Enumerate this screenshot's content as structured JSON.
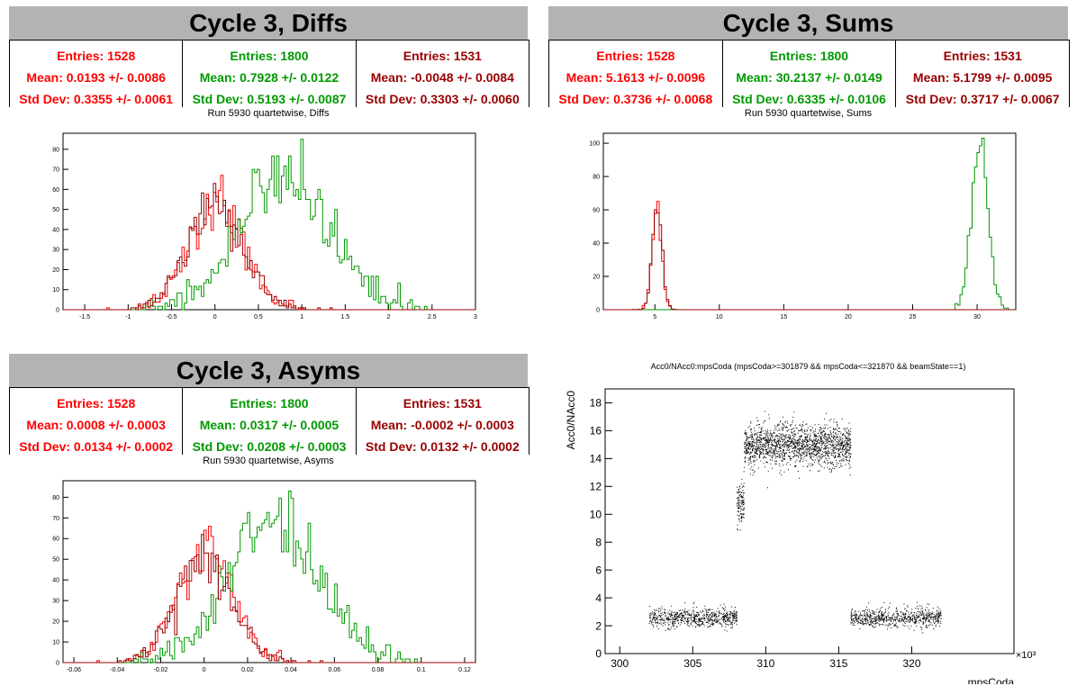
{
  "colors": {
    "red": "#ff0000",
    "green": "#009900",
    "darkred": "#990000",
    "scatter": "#000000",
    "title_bg": "#b3b3b3"
  },
  "diffs": {
    "title": "Cycle 3, Diffs",
    "subtitle": "Run 5930 quartetwise, Diffs",
    "stats": [
      {
        "entries": "Entries: 1528",
        "mean": "Mean: 0.0193 +/- 0.0086",
        "std": "Std Dev: 0.3355 +/- 0.0061"
      },
      {
        "entries": "Entries: 1800",
        "mean": "Mean: 0.7928 +/- 0.0122",
        "std": "Std Dev: 0.5193 +/- 0.0087"
      },
      {
        "entries": "Entries: 1531",
        "mean": "Mean: -0.0048 +/- 0.0084",
        "std": "Std Dev: 0.3303 +/- 0.0060"
      }
    ]
  },
  "sums": {
    "title": "Cycle 3, Sums",
    "subtitle": "Run 5930 quartetwise, Sums",
    "stats": [
      {
        "entries": "Entries: 1528",
        "mean": "Mean: 5.1613 +/- 0.0096",
        "std": "Std Dev: 0.3736 +/- 0.0068"
      },
      {
        "entries": "Entries: 1800",
        "mean": "Mean: 30.2137 +/- 0.0149",
        "std": "Std Dev: 0.6335 +/- 0.0106"
      },
      {
        "entries": "Entries: 1531",
        "mean": "Mean: 5.1799 +/- 0.0095",
        "std": "Std Dev: 0.3717 +/- 0.0067"
      }
    ]
  },
  "asyms": {
    "title": "Cycle 3, Asyms",
    "subtitle": "Run 5930 quartetwise, Asyms",
    "stats": [
      {
        "entries": "Entries: 1528",
        "mean": "Mean: 0.0008 +/- 0.0003",
        "std": "Std Dev: 0.0134 +/- 0.0002"
      },
      {
        "entries": "Entries: 1800",
        "mean": "Mean: 0.0317 +/- 0.0005",
        "std": "Std Dev: 0.0208 +/- 0.0003"
      },
      {
        "entries": "Entries: 1531",
        "mean": "Mean: -0.0002 +/- 0.0003",
        "std": "Std Dev: 0.0132 +/- 0.0002"
      }
    ]
  },
  "scatter": {
    "title": "Acc0/NAcc0:mpsCoda (mpsCoda>=301879 && mpsCoda<=321870 && beamState==1)",
    "xlabel": "mpsCoda",
    "ylabel": "Acc0/NAcc0",
    "exponent": "×10³"
  },
  "chart_data": [
    {
      "type": "histogram",
      "id": "diffs",
      "xlim": [
        -1.75,
        3.0
      ],
      "ylim": [
        0,
        88
      ],
      "xticks": [
        "-1.5",
        "-1",
        "-0.5",
        "0",
        "0.5",
        "1",
        "1.5",
        "2",
        "2.5",
        "3"
      ],
      "yticks": [
        "0",
        "10",
        "20",
        "30",
        "40",
        "50",
        "60",
        "70",
        "80"
      ],
      "series": [
        {
          "color": "red",
          "entries": 1528,
          "mean": 0.0193,
          "std": 0.3355,
          "peak": 67
        },
        {
          "color": "green",
          "entries": 1800,
          "mean": 0.7928,
          "std": 0.5193,
          "peak": 85
        },
        {
          "color": "darkred",
          "entries": 1531,
          "mean": -0.0048,
          "std": 0.3303,
          "peak": 63
        }
      ]
    },
    {
      "type": "histogram",
      "id": "sums",
      "xlim": [
        1.0,
        33.0
      ],
      "ylim": [
        0,
        106
      ],
      "xticks": [
        "5",
        "10",
        "15",
        "20",
        "25",
        "30"
      ],
      "yticks": [
        "0",
        "20",
        "40",
        "60",
        "80",
        "100"
      ],
      "series": [
        {
          "color": "red",
          "entries": 1528,
          "mean": 5.1613,
          "std": 0.3736,
          "peak": 65
        },
        {
          "color": "green",
          "entries": 1800,
          "mean": 30.2137,
          "std": 0.6335,
          "peak": 103
        },
        {
          "color": "darkred",
          "entries": 1531,
          "mean": 5.1799,
          "std": 0.3717,
          "peak": 60
        }
      ]
    },
    {
      "type": "histogram",
      "id": "asyms",
      "xlim": [
        -0.065,
        0.125
      ],
      "ylim": [
        0,
        88
      ],
      "xticks": [
        "-0.06",
        "-0.04",
        "-0.02",
        "0",
        "0.02",
        "0.04",
        "0.06",
        "0.08",
        "0.1",
        "0.12"
      ],
      "yticks": [
        "0",
        "10",
        "20",
        "30",
        "40",
        "50",
        "60",
        "70",
        "80"
      ],
      "series": [
        {
          "color": "red",
          "entries": 1528,
          "mean": 0.0008,
          "std": 0.0134,
          "peak": 66
        },
        {
          "color": "green",
          "entries": 1800,
          "mean": 0.0317,
          "std": 0.0208,
          "peak": 83
        },
        {
          "color": "darkred",
          "entries": 1531,
          "mean": -0.0002,
          "std": 0.0132,
          "peak": 62
        }
      ]
    },
    {
      "type": "scatter",
      "id": "scatter",
      "xlim": [
        299,
        327
      ],
      "ylim": [
        0,
        19
      ],
      "xticks": [
        "300",
        "305",
        "310",
        "315",
        "320"
      ],
      "yticks": [
        "0",
        "2",
        "4",
        "6",
        "8",
        "10",
        "12",
        "14",
        "16",
        "18"
      ],
      "clusters": [
        {
          "x": [
            302.0,
            308.0
          ],
          "y_mean": 2.6,
          "y_spread": 0.35,
          "count": 700
        },
        {
          "x": [
            308.0,
            308.5
          ],
          "y_mean": 10.8,
          "y_spread": 0.8,
          "count": 120
        },
        {
          "x": [
            308.5,
            315.8
          ],
          "y_mean": 15.0,
          "y_spread": 0.75,
          "count": 1700
        },
        {
          "x": [
            315.8,
            322.0
          ],
          "y_mean": 2.6,
          "y_spread": 0.35,
          "count": 700
        }
      ]
    }
  ]
}
